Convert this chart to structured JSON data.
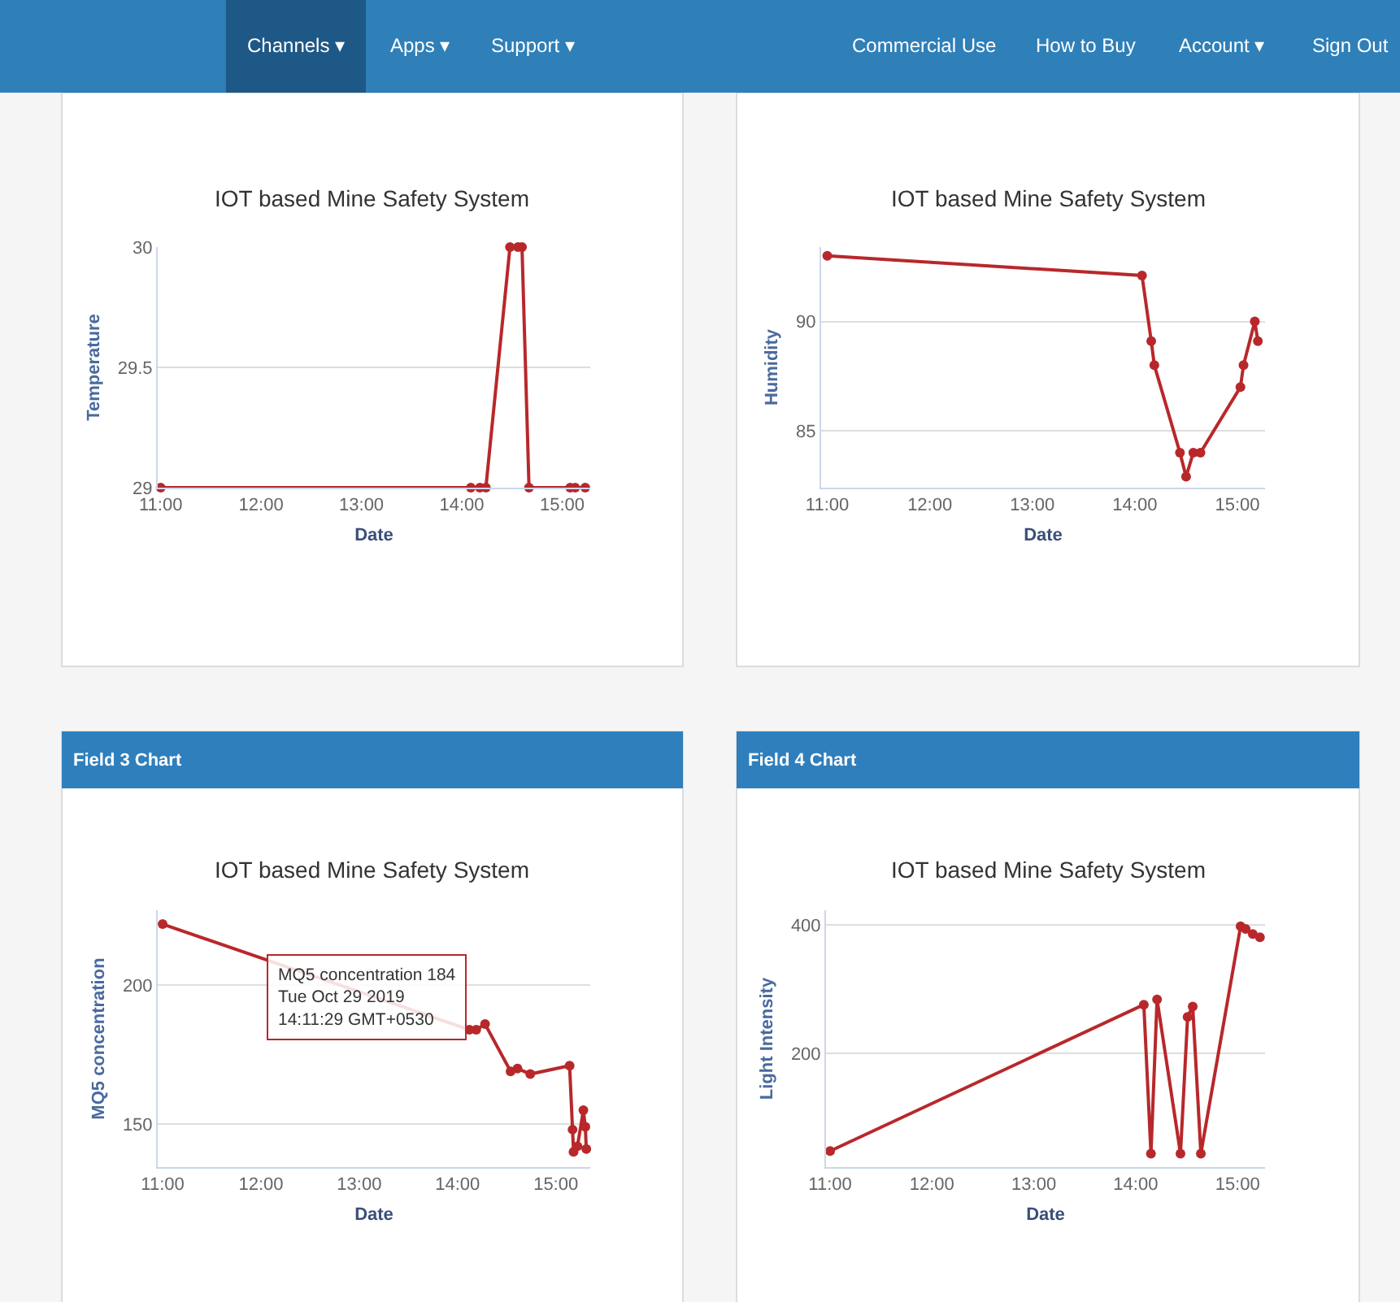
{
  "chart_data": [
    {
      "type": "other",
      "annotations": [
        "Channels ▾",
        "Apps ▾",
        "Support ▾"
      ]
    },
    {
      "type": "other",
      "annotations": [
        "Commercial Use",
        "How to Buy",
        "Account ▾",
        "Sign Out"
      ]
    },
    {
      "type": "line",
      "title": "IOT based Mine Safety System",
      "xlabel": "Date",
      "ylabel": "Temperature",
      "x": [
        11.0,
        14.09,
        14.18,
        14.24,
        14.48,
        14.56,
        14.6,
        14.67,
        15.08,
        15.13,
        15.23
      ],
      "series": [
        {
          "color": "#b8282b",
          "values": [
            29,
            29,
            29,
            29,
            30,
            30,
            30,
            29,
            29,
            29,
            29
          ]
        }
      ],
      "xlim": [
        10.97,
        15.28
      ],
      "ylim": [
        29,
        30
      ],
      "xticks": [
        {
          "value": 11,
          "label": "11:00"
        },
        {
          "value": 12,
          "label": "12:00"
        },
        {
          "value": 13,
          "label": "13:00"
        },
        {
          "value": 14,
          "label": "14:00"
        },
        {
          "value": 15,
          "label": "15:00"
        }
      ],
      "yticks": [
        29,
        29.5,
        30
      ],
      "grid": "y",
      "marker": "circle",
      "line_style": "solid"
    },
    {
      "type": "line",
      "title": "IOT based Mine Safety System",
      "xlabel": "Date",
      "ylabel": "Humidity",
      "x": [
        11.0,
        14.07,
        14.16,
        14.19,
        14.44,
        14.5,
        14.57,
        14.64,
        15.03,
        15.06,
        15.17,
        15.2
      ],
      "series": [
        {
          "color": "#b8282b",
          "values": [
            93.0,
            92.1,
            89.1,
            88.0,
            84.0,
            82.9,
            84.0,
            84.0,
            87.0,
            88.0,
            90.0,
            89.1
          ]
        }
      ],
      "xlim": [
        10.94,
        15.27
      ],
      "ylim": [
        82.4,
        93.4
      ],
      "xticks": [
        {
          "value": 11,
          "label": "11:00"
        },
        {
          "value": 12,
          "label": "12:00"
        },
        {
          "value": 13,
          "label": "13:00"
        },
        {
          "value": 14,
          "label": "14:00"
        },
        {
          "value": 15,
          "label": "15:00"
        }
      ],
      "yticks": [
        85,
        90
      ],
      "grid": "y",
      "marker": "circle",
      "line_style": "solid"
    },
    {
      "type": "line",
      "title": "IOT based Mine Safety System",
      "xlabel": "Date",
      "ylabel": "MQ5 concentration",
      "annotations": [
        "Field 3 Chart",
        {
          "text": "MQ5 concentration 184\nTue Oct 29 2019\n14:11:29 GMT+0530",
          "x": 14.19,
          "y": 184
        }
      ],
      "x": [
        11.0,
        14.12,
        14.19,
        14.28,
        14.54,
        14.61,
        14.74,
        15.14,
        15.17,
        15.18,
        15.22,
        15.28,
        15.3,
        15.31
      ],
      "series": [
        {
          "color": "#b8282b",
          "values": [
            222,
            184,
            184,
            186,
            169,
            170,
            168,
            171,
            148,
            140,
            142,
            155,
            149,
            141
          ]
        }
      ],
      "xlim": [
        10.95,
        15.35
      ],
      "ylim": [
        134.5,
        227
      ],
      "xticks": [
        {
          "value": 11,
          "label": "11:00"
        },
        {
          "value": 12,
          "label": "12:00"
        },
        {
          "value": 13,
          "label": "13:00"
        },
        {
          "value": 14,
          "label": "14:00"
        },
        {
          "value": 15,
          "label": "15:00"
        }
      ],
      "yticks": [
        150,
        200
      ],
      "grid": "y",
      "marker": "circle",
      "line_style": "solid"
    },
    {
      "type": "line",
      "title": "IOT based Mine Safety System",
      "xlabel": "Date",
      "ylabel": "Light Intensity",
      "annotations": [
        "Field 4 Chart"
      ],
      "x": [
        11.0,
        14.08,
        14.15,
        14.21,
        14.44,
        14.51,
        14.56,
        14.64,
        15.03,
        15.08,
        15.15,
        15.22
      ],
      "series": [
        {
          "color": "#b8282b",
          "values": [
            48,
            276,
            44,
            284,
            44,
            257,
            273,
            44,
            398,
            394,
            386,
            381
          ]
        }
      ],
      "xlim": [
        10.96,
        15.27
      ],
      "ylim": [
        23,
        423
      ],
      "xticks": [
        {
          "value": 11,
          "label": "11:00"
        },
        {
          "value": 12,
          "label": "12:00"
        },
        {
          "value": 13,
          "label": "13:00"
        },
        {
          "value": 14,
          "label": "14:00"
        },
        {
          "value": 15,
          "label": "15:00"
        }
      ],
      "yticks": [
        200,
        400
      ],
      "grid": "y",
      "marker": "circle",
      "line_style": "solid"
    }
  ]
}
